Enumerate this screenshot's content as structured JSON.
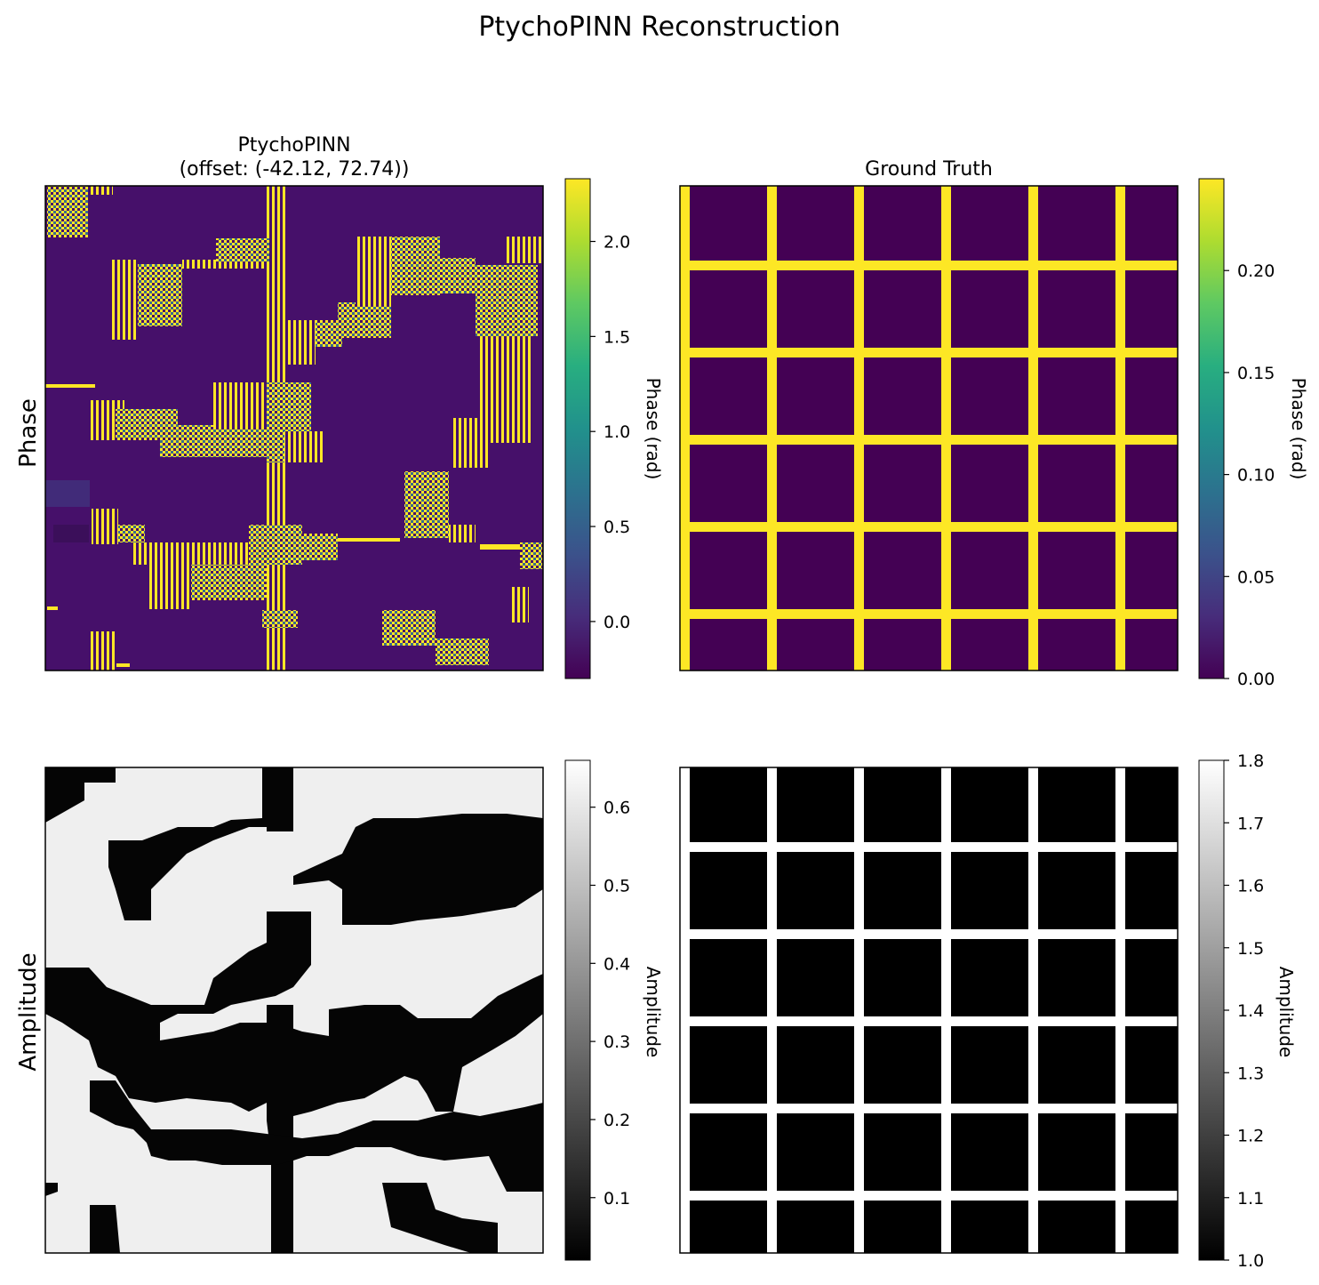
{
  "chart_data": {
    "title": "PtychoPINN Reconstruction",
    "row_labels": [
      "Phase",
      "Amplitude"
    ],
    "panels": [
      {
        "id": "recon-phase",
        "type": "heatmap",
        "title_line1": "PtychoPINN",
        "title_line2": "(offset: (-42.12, 72.74))",
        "colormap": "viridis",
        "vmin": -0.3,
        "vmax": 2.33,
        "colorbar_label": "Phase (rad)",
        "colorbar_ticks": [
          "0.0",
          "0.5",
          "1.0",
          "1.5",
          "2.0"
        ],
        "colorbar_tick_values": [
          0.0,
          0.5,
          1.0,
          1.5,
          2.0
        ]
      },
      {
        "id": "gt-phase",
        "type": "heatmap",
        "title_line1": "Ground Truth",
        "title_line2": "",
        "colormap": "viridis",
        "vmin": 0.0,
        "vmax": 0.245,
        "colorbar_label": "Phase (rad)",
        "colorbar_ticks": [
          "0.00",
          "0.05",
          "0.10",
          "0.15",
          "0.20"
        ],
        "colorbar_tick_values": [
          0.0,
          0.05,
          0.1,
          0.15,
          0.2
        ]
      },
      {
        "id": "recon-amplitude",
        "type": "heatmap",
        "title_line1": "",
        "title_line2": "",
        "colormap": "gray",
        "vmin": 0.02,
        "vmax": 0.66,
        "colorbar_label": "Amplitude",
        "colorbar_ticks": [
          "0.1",
          "0.2",
          "0.3",
          "0.4",
          "0.5",
          "0.6"
        ],
        "colorbar_tick_values": [
          0.1,
          0.2,
          0.3,
          0.4,
          0.5,
          0.6
        ]
      },
      {
        "id": "gt-amplitude",
        "type": "heatmap",
        "title_line1": "",
        "title_line2": "",
        "colormap": "gray",
        "vmin": 1.0,
        "vmax": 1.8,
        "colorbar_label": "Amplitude",
        "colorbar_ticks": [
          "1.0",
          "1.1",
          "1.2",
          "1.3",
          "1.4",
          "1.5",
          "1.6",
          "1.7",
          "1.8"
        ],
        "colorbar_tick_values": [
          1.0,
          1.1,
          1.2,
          1.3,
          1.4,
          1.5,
          1.6,
          1.7,
          1.8
        ]
      }
    ]
  }
}
